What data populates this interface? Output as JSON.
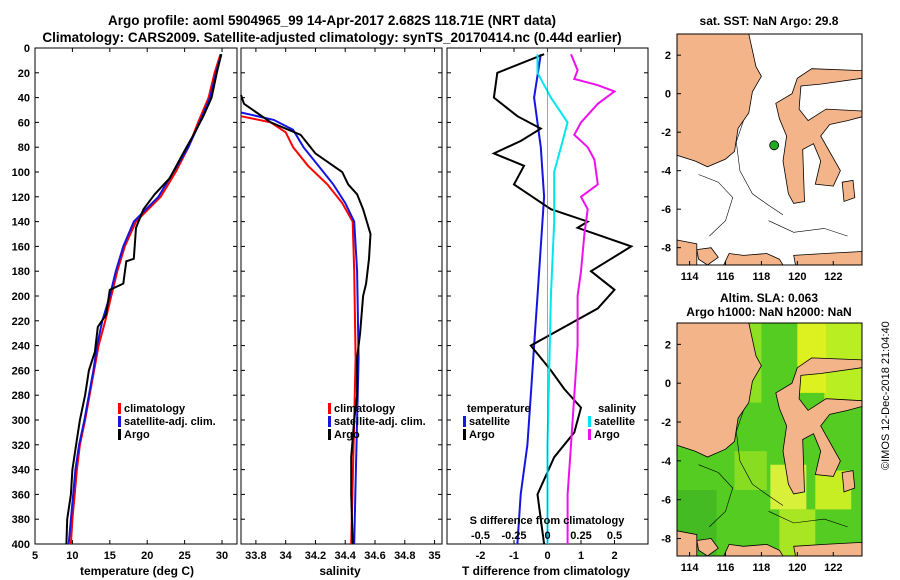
{
  "header": {
    "line1": "Argo profile: aoml 5904965_99 14-Apr-2017 2.682S 118.71E (NRT data)",
    "line2": "Climatology: CARS2009. Satellite-adjusted climatology: synTS_20170414.nc (0.44d earlier)"
  },
  "watermark": "©IMOS 12-Dec-2018 21:04:40",
  "colors": {
    "red": "#ff0000",
    "blue": "#1515e0",
    "black": "#000000",
    "cyan": "#00e5ee",
    "magenta": "#ee11ee",
    "land": "#f4b48a"
  },
  "chart_data": [
    {
      "type": "line",
      "id": "temperature",
      "xlabel": "temperature (deg C)",
      "xlim": [
        5,
        32
      ],
      "xticks": [
        5,
        10,
        15,
        20,
        25,
        30
      ],
      "ylim": [
        400,
        0
      ],
      "yticks": [
        0,
        20,
        40,
        60,
        80,
        100,
        120,
        140,
        160,
        180,
        200,
        220,
        240,
        260,
        280,
        300,
        320,
        340,
        360,
        380,
        400
      ],
      "legend": [
        "climatology",
        "satellite-adj. clim.",
        "Argo"
      ],
      "series": [
        {
          "name": "climatology",
          "color": "red",
          "points": [
            [
              29.8,
              5
            ],
            [
              29.0,
              20
            ],
            [
              28.2,
              40
            ],
            [
              26.8,
              60
            ],
            [
              25.5,
              80
            ],
            [
              23.8,
              100
            ],
            [
              21.8,
              120
            ],
            [
              18.5,
              140
            ],
            [
              17.0,
              160
            ],
            [
              16.0,
              180
            ],
            [
              15.2,
              200
            ],
            [
              14.4,
              220
            ],
            [
              13.5,
              240
            ],
            [
              12.9,
              260
            ],
            [
              12.3,
              280
            ],
            [
              11.7,
              300
            ],
            [
              11.0,
              320
            ],
            [
              10.6,
              340
            ],
            [
              10.3,
              360
            ],
            [
              10.0,
              380
            ],
            [
              9.8,
              400
            ]
          ]
        },
        {
          "name": "satellite-adj. clim.",
          "color": "blue",
          "points": [
            [
              29.9,
              5
            ],
            [
              29.2,
              20
            ],
            [
              28.4,
              40
            ],
            [
              27.0,
              60
            ],
            [
              25.5,
              80
            ],
            [
              23.5,
              100
            ],
            [
              21.5,
              120
            ],
            [
              18.2,
              140
            ],
            [
              16.8,
              160
            ],
            [
              15.8,
              180
            ],
            [
              15.0,
              200
            ],
            [
              14.0,
              220
            ],
            [
              13.3,
              240
            ],
            [
              12.8,
              260
            ],
            [
              12.2,
              280
            ],
            [
              11.6,
              300
            ],
            [
              10.9,
              320
            ],
            [
              10.4,
              340
            ],
            [
              10.1,
              360
            ],
            [
              9.8,
              380
            ],
            [
              9.5,
              400
            ]
          ]
        },
        {
          "name": "Argo",
          "color": "black",
          "points": [
            [
              29.9,
              5
            ],
            [
              29.3,
              20
            ],
            [
              28.6,
              40
            ],
            [
              27.5,
              55
            ],
            [
              26.2,
              70
            ],
            [
              24.8,
              85
            ],
            [
              23.0,
              105
            ],
            [
              21.0,
              118
            ],
            [
              19.5,
              130
            ],
            [
              18.5,
              145
            ],
            [
              18.2,
              170
            ],
            [
              17.2,
              172
            ],
            [
              16.8,
              190
            ],
            [
              15.0,
              195
            ],
            [
              14.5,
              215
            ],
            [
              13.4,
              225
            ],
            [
              13.0,
              245
            ],
            [
              12.2,
              260
            ],
            [
              11.7,
              280
            ],
            [
              11.0,
              300
            ],
            [
              10.5,
              320
            ],
            [
              10.0,
              340
            ],
            [
              9.8,
              360
            ],
            [
              9.3,
              380
            ],
            [
              9.2,
              400
            ]
          ]
        }
      ]
    },
    {
      "type": "line",
      "id": "salinity",
      "xlabel": "salinity",
      "xlim": [
        33.7,
        35.05
      ],
      "xticks": [
        33.8,
        34,
        34.2,
        34.4,
        34.6,
        34.8,
        35
      ],
      "xticklabels": [
        "33.8",
        "34",
        "34.2",
        "34.4",
        "34.6",
        "34.8",
        "35"
      ],
      "ylim": [
        400,
        0
      ],
      "legend": [
        "climatology",
        "satellite-adj. clim.",
        "Argo"
      ],
      "series": [
        {
          "name": "climatology",
          "color": "red",
          "points": [
            [
              33.7,
              55
            ],
            [
              33.9,
              60
            ],
            [
              34.0,
              68
            ],
            [
              34.05,
              80
            ],
            [
              34.15,
              95
            ],
            [
              34.28,
              110
            ],
            [
              34.38,
              125
            ],
            [
              34.45,
              140
            ],
            [
              34.46,
              180
            ],
            [
              34.47,
              250
            ],
            [
              34.46,
              300
            ],
            [
              34.45,
              350
            ],
            [
              34.44,
              400
            ]
          ]
        },
        {
          "name": "satellite-adj. clim.",
          "color": "blue",
          "points": [
            [
              33.7,
              52
            ],
            [
              33.92,
              58
            ],
            [
              34.05,
              66
            ],
            [
              34.12,
              80
            ],
            [
              34.22,
              95
            ],
            [
              34.32,
              110
            ],
            [
              34.4,
              125
            ],
            [
              34.46,
              140
            ],
            [
              34.48,
              180
            ],
            [
              34.49,
              250
            ],
            [
              34.48,
              300
            ],
            [
              34.47,
              350
            ],
            [
              34.46,
              400
            ]
          ]
        },
        {
          "name": "Argo",
          "color": "black",
          "points": [
            [
              33.7,
              38
            ],
            [
              33.72,
              45
            ],
            [
              33.9,
              60
            ],
            [
              34.1,
              70
            ],
            [
              34.2,
              85
            ],
            [
              34.38,
              100
            ],
            [
              34.42,
              110
            ],
            [
              34.48,
              118
            ],
            [
              34.52,
              130
            ],
            [
              34.57,
              150
            ],
            [
              34.56,
              170
            ],
            [
              34.54,
              190
            ],
            [
              34.52,
              200
            ],
            [
              34.5,
              230
            ],
            [
              34.48,
              250
            ],
            [
              34.48,
              280
            ],
            [
              34.46,
              300
            ],
            [
              34.44,
              330
            ],
            [
              34.44,
              360
            ],
            [
              34.45,
              400
            ]
          ]
        }
      ]
    },
    {
      "type": "line",
      "id": "differences",
      "xlabel": "T difference from climatology",
      "xlim": [
        -3,
        3
      ],
      "xticks": [
        -2,
        -1,
        0,
        1,
        2
      ],
      "secondary_axis": {
        "label": "S difference from climatology",
        "ticks": [
          "-0.5",
          "-0.25",
          "0",
          "0.25",
          "0.5"
        ],
        "values": [
          -0.5,
          -0.25,
          0,
          0.25,
          0.5
        ]
      },
      "ylim": [
        400,
        0
      ],
      "legend_left": {
        "title": "temperature",
        "items": [
          "satellite",
          "Argo"
        ]
      },
      "legend_right": {
        "title": "salinity",
        "items": [
          "satellite",
          "Argo"
        ]
      },
      "series": [
        {
          "name": "temperature satellite",
          "color": "blue",
          "points": [
            [
              -0.2,
              5
            ],
            [
              -0.4,
              40
            ],
            [
              -0.2,
              80
            ],
            [
              -0.1,
              120
            ],
            [
              -0.2,
              160
            ],
            [
              -0.3,
              200
            ],
            [
              -0.4,
              240
            ],
            [
              -0.5,
              280
            ],
            [
              -0.6,
              320
            ],
            [
              -0.8,
              360
            ],
            [
              -0.9,
              400
            ]
          ]
        },
        {
          "name": "temperature Argo",
          "color": "black",
          "points": [
            [
              -0.1,
              5
            ],
            [
              -1.5,
              20
            ],
            [
              -1.6,
              40
            ],
            [
              -0.9,
              55
            ],
            [
              -0.2,
              65
            ],
            [
              -0.8,
              75
            ],
            [
              -1.6,
              85
            ],
            [
              -0.7,
              95
            ],
            [
              -1.0,
              110
            ],
            [
              0.1,
              130
            ],
            [
              1.2,
              140
            ],
            [
              0.9,
              145
            ],
            [
              2.5,
              160
            ],
            [
              1.3,
              180
            ],
            [
              2.0,
              195
            ],
            [
              1.5,
              210
            ],
            [
              0.5,
              225
            ],
            [
              -0.5,
              240
            ],
            [
              0.1,
              260
            ],
            [
              0.5,
              275
            ],
            [
              1.0,
              290
            ],
            [
              0.8,
              310
            ],
            [
              0.2,
              330
            ],
            [
              -0.3,
              360
            ],
            [
              -0.1,
              400
            ]
          ]
        },
        {
          "name": "salinity satellite",
          "color": "cyan",
          "points": [
            [
              -0.3,
              5
            ],
            [
              -0.3,
              20
            ],
            [
              0.1,
              40
            ],
            [
              0.6,
              60
            ],
            [
              0.4,
              80
            ],
            [
              0.2,
              100
            ],
            [
              0.2,
              140
            ],
            [
              0.1,
              200
            ],
            [
              0.05,
              260
            ],
            [
              0.0,
              320
            ],
            [
              0.0,
              400
            ]
          ]
        },
        {
          "name": "salinity Argo",
          "color": "magenta",
          "points": [
            [
              0.7,
              5
            ],
            [
              0.9,
              18
            ],
            [
              0.8,
              25
            ],
            [
              1.5,
              30
            ],
            [
              2.0,
              35
            ],
            [
              1.5,
              45
            ],
            [
              1.0,
              60
            ],
            [
              0.8,
              70
            ],
            [
              1.2,
              80
            ],
            [
              1.4,
              90
            ],
            [
              1.5,
              110
            ],
            [
              1.0,
              120
            ],
            [
              1.2,
              130
            ],
            [
              1.1,
              150
            ],
            [
              1.0,
              180
            ],
            [
              0.9,
              200
            ],
            [
              0.9,
              240
            ],
            [
              0.8,
              280
            ],
            [
              0.7,
              320
            ],
            [
              0.6,
              360
            ],
            [
              0.6,
              400
            ]
          ]
        }
      ]
    },
    {
      "type": "map",
      "id": "sst_map",
      "title": "sat. SST: NaN Argo: 29.8",
      "xlim": [
        113.3,
        123.6
      ],
      "ylim": [
        -8.9,
        3.1
      ],
      "xticks": [
        114,
        116,
        118,
        120,
        122
      ],
      "yticks": [
        2,
        0,
        -2,
        -4,
        -6,
        -8
      ],
      "argo_position": [
        118.71,
        -2.682
      ]
    },
    {
      "type": "map",
      "id": "sla_map",
      "title": "Altim. SLA: 0.063",
      "subtitle": "Argo h1000: NaN h2000: NaN",
      "xlim": [
        113.3,
        123.6
      ],
      "ylim": [
        -8.9,
        3.1
      ],
      "xticks": [
        114,
        116,
        118,
        120,
        122
      ],
      "yticks": [
        2,
        0,
        -2,
        -4,
        -6,
        -8
      ]
    }
  ]
}
